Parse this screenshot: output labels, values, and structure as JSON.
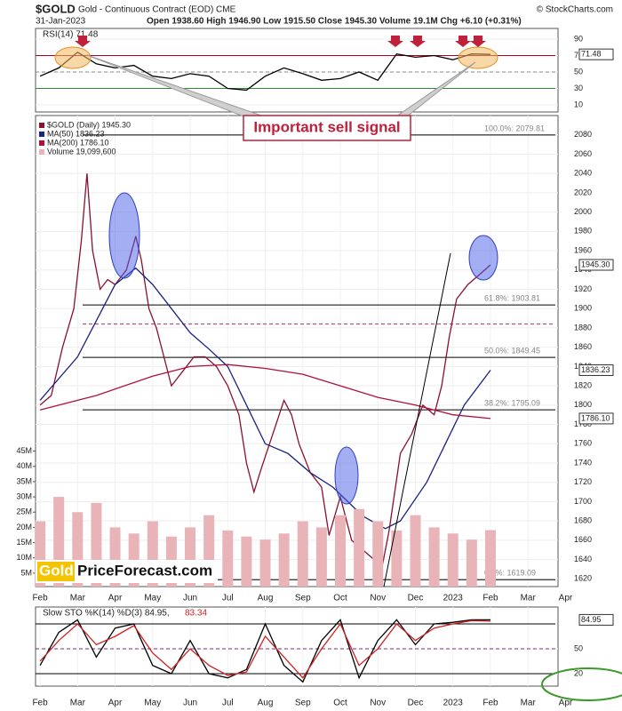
{
  "header": {
    "symbol": "$GOLD",
    "name": "Gold - Continuous Contract (EOD) CME",
    "date": "31-Jan-2023",
    "quote": "Open 1938.60 High 1946.90 Low 1915.50 Close 1945.30 Volume 19.1M Chg +6.10 (+0.31%)",
    "source": "© StockCharts.com",
    "annotation": "Important sell signal",
    "logo_left": "Gold",
    "logo_right": "PriceForecast.com"
  },
  "chart_data": [
    {
      "type": "line",
      "title": "RSI(14) 71.48",
      "xlim": [
        -0.12,
        13.8
      ],
      "ylim": [
        1.4,
        103
      ],
      "yticks": [
        90,
        70,
        50,
        30,
        10
      ],
      "levels": [
        {
          "value": 70,
          "color": "#b00020"
        },
        {
          "value": 50,
          "color": "#888888",
          "style": "dashed"
        },
        {
          "value": 30,
          "color": "#2e8b2e"
        }
      ],
      "series": [
        {
          "name": "RSI(14)",
          "color": "#000000",
          "tag": "71.48",
          "x": [
            0,
            0.5,
            1,
            1.5,
            2,
            2.5,
            3,
            3.5,
            4,
            4.5,
            5,
            5.5,
            6,
            6.5,
            7,
            7.5,
            8,
            8.5,
            9,
            9.5,
            10,
            10.5,
            11,
            11.5,
            12
          ],
          "values": [
            45,
            55,
            74,
            60,
            55,
            58,
            45,
            42,
            48,
            45,
            30,
            28,
            45,
            55,
            48,
            40,
            42,
            50,
            40,
            72,
            68,
            70,
            65,
            72,
            71.48
          ]
        }
      ]
    },
    {
      "type": "line",
      "xlim": [
        -0.12,
        13.8
      ],
      "ylim": [
        1612,
        2100
      ],
      "yticks": [
        1620,
        1640,
        1660,
        1680,
        1700,
        1720,
        1740,
        1760,
        1780,
        1800,
        1820,
        1840,
        1860,
        1880,
        1900,
        1920,
        1940,
        1960,
        1980,
        2000,
        2020,
        2040,
        2060,
        2080
      ],
      "xticks": [
        {
          "value": 0,
          "label": "Feb"
        },
        {
          "value": 1,
          "label": "Mar"
        },
        {
          "value": 2,
          "label": "Apr"
        },
        {
          "value": 3,
          "label": "May"
        },
        {
          "value": 4,
          "label": "Jun"
        },
        {
          "value": 5,
          "label": "Jul"
        },
        {
          "value": 6,
          "label": "Aug"
        },
        {
          "value": 7,
          "label": "Sep"
        },
        {
          "value": 8,
          "label": "Oct"
        },
        {
          "value": 9,
          "label": "Nov"
        },
        {
          "value": 10,
          "label": "Dec"
        },
        {
          "value": 11,
          "label": "2023"
        },
        {
          "value": 12,
          "label": "Feb"
        },
        {
          "value": 13,
          "label": "Mar"
        },
        {
          "value": 14,
          "label": "Apr"
        }
      ],
      "y2lim": [
        0.6,
        155
      ],
      "y2ticks": [
        {
          "value": 5,
          "label": "5M"
        },
        {
          "value": 10,
          "label": "10M"
        },
        {
          "value": 15,
          "label": "15M"
        },
        {
          "value": 20,
          "label": "20M"
        },
        {
          "value": 25,
          "label": "25M"
        },
        {
          "value": 30,
          "label": "30M"
        },
        {
          "value": 35,
          "label": "35M"
        },
        {
          "value": 40,
          "label": "40M"
        },
        {
          "value": 45,
          "label": "45M"
        }
      ],
      "levels": [
        {
          "value": 2079.81,
          "label": "100.0%: 2079.81",
          "color": "#000000"
        },
        {
          "value": 1903.81,
          "label": "61.8%: 1903.81",
          "color": "#000000"
        },
        {
          "value": 1884,
          "color": "#a0307a",
          "style": "dashed"
        },
        {
          "value": 1849.45,
          "label": "50.0%: 1849.45",
          "color": "#000000"
        },
        {
          "value": 1795.09,
          "label": "38.2%: 1795.09",
          "color": "#000000"
        },
        {
          "value": 1619.09,
          "label": "0.0%: 1619.09",
          "color": "#000000"
        }
      ],
      "series": [
        {
          "name": "$GOLD (Daily) 1945.30",
          "color": "#8a1030",
          "tag": "1945.30",
          "x": [
            0,
            0.3,
            0.6,
            0.9,
            1.1,
            1.25,
            1.4,
            1.6,
            1.8,
            2.0,
            2.3,
            2.55,
            2.7,
            2.9,
            3.1,
            3.3,
            3.5,
            3.8,
            4.1,
            4.4,
            4.7,
            5.0,
            5.3,
            5.5,
            5.7,
            5.9,
            6.2,
            6.5,
            6.7,
            6.9,
            7.2,
            7.5,
            7.7,
            8.0,
            8.3,
            8.6,
            8.9,
            9.1,
            9.3,
            9.6,
            9.9,
            10.2,
            10.5,
            10.7,
            10.9,
            11.1,
            11.4,
            11.7,
            12.0
          ],
          "values": [
            1800,
            1810,
            1860,
            1900,
            1970,
            2040,
            1960,
            1920,
            1930,
            1925,
            1940,
            1975,
            1950,
            1900,
            1880,
            1850,
            1820,
            1835,
            1850,
            1850,
            1840,
            1820,
            1790,
            1740,
            1710,
            1735,
            1770,
            1805,
            1790,
            1760,
            1730,
            1715,
            1665,
            1705,
            1660,
            1650,
            1640,
            1630,
            1670,
            1750,
            1770,
            1800,
            1790,
            1820,
            1870,
            1910,
            1925,
            1935,
            1945.3
          ]
        },
        {
          "name": "MA(50) 1836.23",
          "color": "#1a237e",
          "tag": "1836.23",
          "x": [
            0,
            1,
            2,
            2.55,
            3,
            3.5,
            4,
            4.5,
            5,
            5.5,
            6,
            6.6,
            7.2,
            7.8,
            8.6,
            9.2,
            9.6,
            10.3,
            10.8,
            11.3,
            12
          ],
          "values": [
            1805,
            1850,
            1925,
            1942,
            1925,
            1900,
            1875,
            1858,
            1840,
            1800,
            1760,
            1750,
            1730,
            1715,
            1685,
            1672,
            1680,
            1720,
            1760,
            1800,
            1836.23
          ]
        },
        {
          "name": "MA(200) 1786.10",
          "color": "#b0103a",
          "tag": "1786.10",
          "x": [
            0,
            1.5,
            3,
            4,
            5,
            6,
            7,
            8,
            9,
            10,
            11,
            12
          ],
          "values": [
            1795,
            1810,
            1830,
            1840,
            1842,
            1838,
            1832,
            1820,
            1808,
            1800,
            1790,
            1786.1
          ]
        },
        {
          "name": "Volume 19,099,600",
          "color": "#e8b4b8",
          "axis": "y2",
          "type": "bar",
          "x": [
            0,
            0.5,
            1,
            1.5,
            2,
            2.5,
            3,
            3.5,
            4,
            4.5,
            5,
            5.5,
            6,
            6.5,
            7,
            7.5,
            8,
            8.5,
            9,
            9.5,
            10,
            10.5,
            11,
            11.5,
            12
          ],
          "values": [
            22,
            30,
            25,
            28,
            20,
            18,
            22,
            17,
            20,
            24,
            19,
            17,
            16,
            18,
            22,
            20,
            24,
            26,
            22,
            19,
            24,
            20,
            18,
            16,
            19.1
          ]
        }
      ]
    },
    {
      "type": "line",
      "title": "Slow STO %K(14) %D(3) 84.95,",
      "subtitle": "83.34",
      "xlim": [
        -0.12,
        13.8
      ],
      "ylim": [
        5,
        100.4
      ],
      "yticks": [
        50,
        20
      ],
      "xticks": [
        {
          "value": 0,
          "label": "Feb"
        },
        {
          "value": 1,
          "label": "Mar"
        },
        {
          "value": 2,
          "label": "Apr"
        },
        {
          "value": 3,
          "label": "May"
        },
        {
          "value": 4,
          "label": "Jun"
        },
        {
          "value": 5,
          "label": "Jul"
        },
        {
          "value": 6,
          "label": "Aug"
        },
        {
          "value": 7,
          "label": "Sep"
        },
        {
          "value": 8,
          "label": "Oct"
        },
        {
          "value": 9,
          "label": "Nov"
        },
        {
          "value": 10,
          "label": "Dec"
        },
        {
          "value": 11,
          "label": "2023"
        },
        {
          "value": 12,
          "label": "Feb"
        },
        {
          "value": 13,
          "label": "Mar"
        },
        {
          "value": 14,
          "label": "Apr"
        }
      ],
      "levels": [
        {
          "value": 80,
          "color": "#000000"
        },
        {
          "value": 50,
          "color": "#7a2a7a",
          "style": "dashed"
        },
        {
          "value": 20,
          "color": "#000000"
        }
      ],
      "series": [
        {
          "name": "%K(14)",
          "color": "#000000",
          "tag": "84.95",
          "x": [
            0,
            0.5,
            1,
            1.5,
            2,
            2.5,
            3,
            3.5,
            4,
            4.5,
            5,
            5.5,
            6,
            6.5,
            7,
            7.5,
            8,
            8.5,
            9,
            9.5,
            10,
            10.5,
            11,
            11.5,
            12
          ],
          "values": [
            30,
            70,
            85,
            40,
            75,
            80,
            30,
            20,
            60,
            20,
            15,
            25,
            80,
            30,
            10,
            60,
            85,
            15,
            60,
            85,
            55,
            80,
            82,
            85,
            84.95
          ]
        },
        {
          "name": "%D(3)",
          "color": "#d02020",
          "x": [
            0,
            0.5,
            1,
            1.5,
            2,
            2.5,
            3,
            3.5,
            4,
            4.5,
            5,
            5.5,
            6,
            6.5,
            7,
            7.5,
            8,
            8.5,
            9,
            9.5,
            10,
            10.5,
            11,
            11.5,
            12
          ],
          "values": [
            35,
            60,
            80,
            55,
            65,
            78,
            45,
            25,
            50,
            30,
            18,
            22,
            65,
            40,
            15,
            50,
            80,
            30,
            50,
            80,
            60,
            75,
            80,
            84,
            83.34
          ]
        }
      ]
    }
  ]
}
